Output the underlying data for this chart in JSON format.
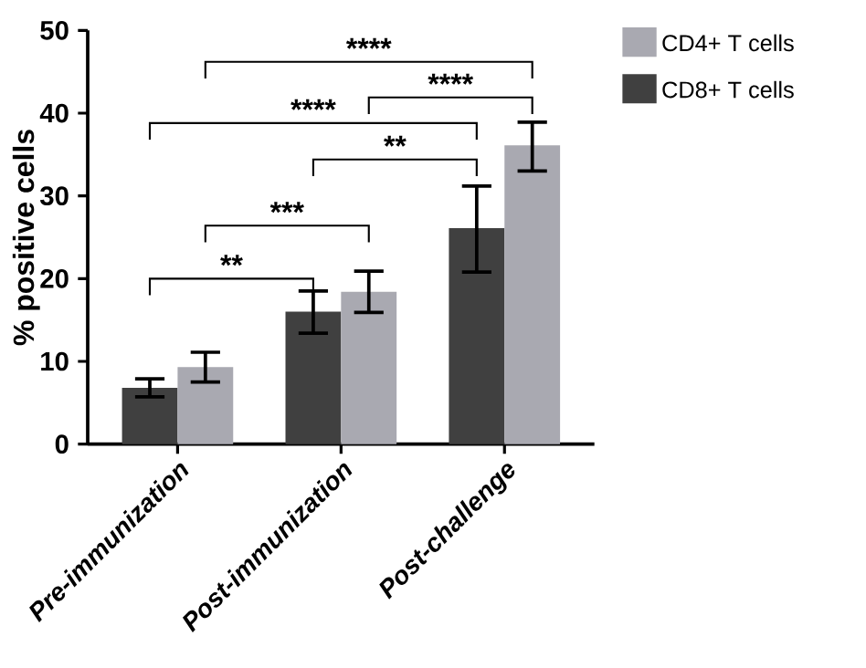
{
  "chart_data": {
    "type": "bar",
    "ylabel": "% positive cells",
    "categories": [
      "Pre-immunization",
      "Post-immunization",
      "Post-challenge"
    ],
    "series": [
      {
        "name": "CD8+ T cells",
        "color": "#404040",
        "values": [
          6.8,
          16.0,
          26.1
        ],
        "errors": [
          [
            5.7,
            7.9
          ],
          [
            13.4,
            18.5
          ],
          [
            20.8,
            31.2
          ]
        ]
      },
      {
        "name": "CD4+ T cells",
        "color": "#a9a9b1",
        "values": [
          9.3,
          18.4,
          36.1
        ],
        "errors": [
          [
            7.5,
            11.1
          ],
          [
            15.9,
            20.9
          ],
          [
            33.0,
            38.9
          ]
        ]
      }
    ],
    "ylim": [
      0,
      50
    ],
    "yticks": [
      0,
      10,
      20,
      30,
      40,
      50
    ],
    "annotations": [
      "**",
      "***",
      "**",
      "****",
      "****",
      "****"
    ],
    "legend": "top right",
    "grid": false
  }
}
